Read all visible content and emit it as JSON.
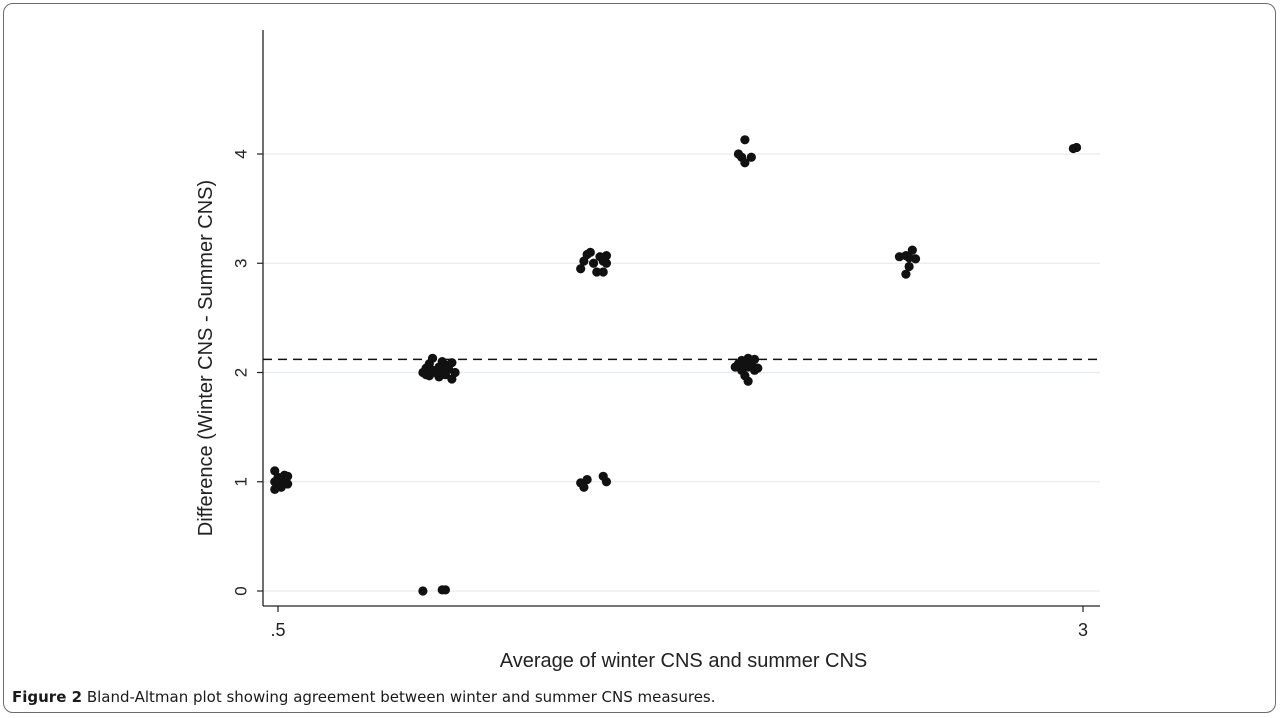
{
  "chart_data": {
    "type": "scatter",
    "xlabel": "Average of winter CNS and summer CNS",
    "ylabel": "Difference (Winter CNS - Summer CNS)",
    "xlim": [
      0.5,
      3
    ],
    "ylim": [
      0,
      4
    ],
    "x_ticks": [
      0.5,
      3
    ],
    "x_tick_labels": [
      ".5",
      "3"
    ],
    "y_ticks": [
      0,
      1,
      2,
      3,
      4
    ],
    "y_tick_labels": [
      "0",
      "1",
      "2",
      "3",
      "4"
    ],
    "grid": "horizontal",
    "mean_difference_line": 2.12,
    "points": [
      {
        "x": 0.49,
        "y": 0.93
      },
      {
        "x": 0.5,
        "y": 0.96
      },
      {
        "x": 0.49,
        "y": 1.0
      },
      {
        "x": 0.51,
        "y": 1.0
      },
      {
        "x": 0.5,
        "y": 1.04
      },
      {
        "x": 0.52,
        "y": 1.02
      },
      {
        "x": 0.53,
        "y": 0.98
      },
      {
        "x": 0.49,
        "y": 1.1
      },
      {
        "x": 0.52,
        "y": 1.06
      },
      {
        "x": 0.5,
        "y": 1.02
      },
      {
        "x": 0.53,
        "y": 1.05
      },
      {
        "x": 0.51,
        "y": 0.95
      },
      {
        "x": 0.95,
        "y": 0.0
      },
      {
        "x": 1.01,
        "y": 0.01
      },
      {
        "x": 1.02,
        "y": 0.01
      },
      {
        "x": 0.95,
        "y": 2.0
      },
      {
        "x": 0.96,
        "y": 2.04
      },
      {
        "x": 0.97,
        "y": 1.97
      },
      {
        "x": 0.97,
        "y": 2.08
      },
      {
        "x": 0.98,
        "y": 2.02
      },
      {
        "x": 0.98,
        "y": 2.13
      },
      {
        "x": 0.99,
        "y": 2.0
      },
      {
        "x": 1.0,
        "y": 1.96
      },
      {
        "x": 1.0,
        "y": 2.05
      },
      {
        "x": 1.01,
        "y": 2.1
      },
      {
        "x": 1.02,
        "y": 1.98
      },
      {
        "x": 1.02,
        "y": 2.07
      },
      {
        "x": 1.03,
        "y": 2.03
      },
      {
        "x": 1.04,
        "y": 1.94
      },
      {
        "x": 1.04,
        "y": 2.09
      },
      {
        "x": 1.05,
        "y": 2.0
      },
      {
        "x": 0.96,
        "y": 1.98
      },
      {
        "x": 1.01,
        "y": 2.01
      },
      {
        "x": 1.44,
        "y": 0.99
      },
      {
        "x": 1.45,
        "y": 0.95
      },
      {
        "x": 1.46,
        "y": 1.02
      },
      {
        "x": 1.51,
        "y": 1.05
      },
      {
        "x": 1.52,
        "y": 1.0
      },
      {
        "x": 1.44,
        "y": 2.95
      },
      {
        "x": 1.45,
        "y": 3.02
      },
      {
        "x": 1.46,
        "y": 3.08
      },
      {
        "x": 1.47,
        "y": 3.1
      },
      {
        "x": 1.48,
        "y": 3.0
      },
      {
        "x": 1.49,
        "y": 2.92
      },
      {
        "x": 1.5,
        "y": 3.06
      },
      {
        "x": 1.51,
        "y": 2.92
      },
      {
        "x": 1.51,
        "y": 3.02
      },
      {
        "x": 1.52,
        "y": 3.0
      },
      {
        "x": 1.52,
        "y": 3.07
      },
      {
        "x": 1.93,
        "y": 4.0
      },
      {
        "x": 1.94,
        "y": 3.97
      },
      {
        "x": 1.95,
        "y": 3.92
      },
      {
        "x": 1.95,
        "y": 4.13
      },
      {
        "x": 1.97,
        "y": 3.97
      },
      {
        "x": 1.92,
        "y": 2.05
      },
      {
        "x": 1.93,
        "y": 2.08
      },
      {
        "x": 1.94,
        "y": 2.02
      },
      {
        "x": 1.94,
        "y": 2.11
      },
      {
        "x": 1.95,
        "y": 1.97
      },
      {
        "x": 1.96,
        "y": 1.92
      },
      {
        "x": 1.96,
        "y": 2.05
      },
      {
        "x": 1.96,
        "y": 2.13
      },
      {
        "x": 1.97,
        "y": 2.08
      },
      {
        "x": 1.98,
        "y": 2.02
      },
      {
        "x": 1.98,
        "y": 2.12
      },
      {
        "x": 1.99,
        "y": 2.04
      },
      {
        "x": 1.95,
        "y": 2.07
      },
      {
        "x": 2.43,
        "y": 3.06
      },
      {
        "x": 2.45,
        "y": 2.9
      },
      {
        "x": 2.45,
        "y": 3.07
      },
      {
        "x": 2.46,
        "y": 3.05
      },
      {
        "x": 2.46,
        "y": 2.97
      },
      {
        "x": 2.47,
        "y": 3.12
      },
      {
        "x": 2.48,
        "y": 3.04
      },
      {
        "x": 2.97,
        "y": 4.05
      },
      {
        "x": 2.98,
        "y": 4.06
      }
    ]
  },
  "caption": {
    "label": "Figure 2",
    "text": " Bland-Altman plot showing agreement between winter and summer CNS measures."
  }
}
